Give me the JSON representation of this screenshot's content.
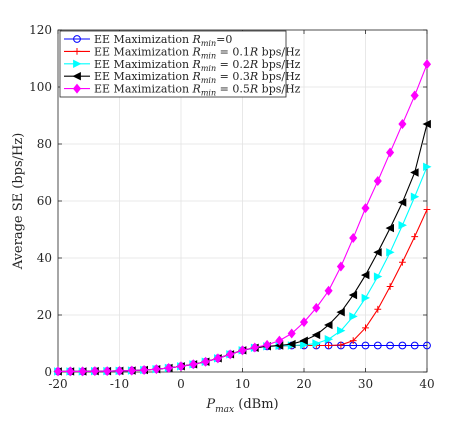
{
  "chart_data": {
    "type": "line",
    "title": "",
    "xlabel": {
      "symbol": "P",
      "subscript": "max",
      "unit": " (dBm)"
    },
    "ylabel": "Average SE (bps/Hz)",
    "xlim": [
      -20,
      40
    ],
    "ylim": [
      0,
      120
    ],
    "xticks": [
      -20,
      -10,
      0,
      10,
      20,
      30,
      40
    ],
    "yticks": [
      0,
      20,
      40,
      60,
      80,
      100,
      120
    ],
    "grid": true,
    "legend_position": "top-left",
    "x": [
      -20,
      -18,
      -16,
      -14,
      -12,
      -10,
      -8,
      -6,
      -4,
      -2,
      0,
      2,
      4,
      6,
      8,
      10,
      12,
      14,
      16,
      18,
      20,
      22,
      24,
      26,
      28,
      30,
      32,
      34,
      36,
      38,
      40
    ],
    "series": [
      {
        "name": {
          "prefix": "EE Maximization ",
          "symbol": "R",
          "subscript": "min",
          "suffix": "=0"
        },
        "color": "#0000ff",
        "marker": "circle",
        "values": [
          0.2,
          0.2,
          0.2,
          0.3,
          0.3,
          0.4,
          0.5,
          0.7,
          1.0,
          1.4,
          2.0,
          2.7,
          3.6,
          4.8,
          6.2,
          7.6,
          8.5,
          9.0,
          9.2,
          9.3,
          9.3,
          9.3,
          9.3,
          9.3,
          9.3,
          9.3,
          9.3,
          9.3,
          9.3,
          9.3,
          9.3
        ]
      },
      {
        "name": {
          "prefix": "EE Maximization ",
          "symbol": "R",
          "subscript": "min",
          "suffix": " = 0.1",
          "symbol2": "R",
          "suffix2": " bps/Hz"
        },
        "color": "#ff0000",
        "marker": "plus",
        "values": [
          0.2,
          0.2,
          0.2,
          0.3,
          0.3,
          0.4,
          0.5,
          0.7,
          1.0,
          1.4,
          2.0,
          2.7,
          3.6,
          4.8,
          6.2,
          7.6,
          8.5,
          9.0,
          9.2,
          9.3,
          9.3,
          9.3,
          9.3,
          9.5,
          11.0,
          15.5,
          22.0,
          30.0,
          38.5,
          47.5,
          57.0
        ]
      },
      {
        "name": {
          "prefix": "EE Maximization ",
          "symbol": "R",
          "subscript": "min",
          "suffix": " = 0.2",
          "symbol2": "R",
          "suffix2": " bps/Hz"
        },
        "color": "#00ffff",
        "marker": "triangle-right",
        "values": [
          0.2,
          0.2,
          0.2,
          0.3,
          0.3,
          0.4,
          0.5,
          0.7,
          1.0,
          1.4,
          2.0,
          2.7,
          3.6,
          4.8,
          6.2,
          7.6,
          8.5,
          9.0,
          9.2,
          9.3,
          9.5,
          10.0,
          11.5,
          14.5,
          19.5,
          26.0,
          33.5,
          42.0,
          51.5,
          61.5,
          72.0
        ]
      },
      {
        "name": {
          "prefix": "EE Maximization ",
          "symbol": "R",
          "subscript": "min",
          "suffix": " = 0.3",
          "symbol2": "R",
          "suffix2": " bps/Hz"
        },
        "color": "#000000",
        "marker": "triangle-left",
        "values": [
          0.2,
          0.2,
          0.2,
          0.3,
          0.3,
          0.4,
          0.5,
          0.7,
          1.0,
          1.4,
          2.0,
          2.7,
          3.6,
          4.8,
          6.2,
          7.6,
          8.5,
          9.0,
          9.3,
          9.8,
          11.0,
          13.0,
          16.5,
          21.0,
          27.0,
          34.0,
          42.0,
          50.5,
          59.5,
          70.0,
          87.0
        ]
      },
      {
        "name": {
          "prefix": "EE Maximization ",
          "symbol": "R",
          "subscript": "min",
          "suffix": " = 0.5",
          "symbol2": "R",
          "suffix2": " bps/Hz"
        },
        "color": "#ff00ff",
        "marker": "diamond",
        "values": [
          0.2,
          0.2,
          0.2,
          0.3,
          0.3,
          0.4,
          0.5,
          0.7,
          1.0,
          1.4,
          2.0,
          2.7,
          3.6,
          4.8,
          6.2,
          7.6,
          8.6,
          9.5,
          11.0,
          13.5,
          17.5,
          22.5,
          28.5,
          37.0,
          47.0,
          57.5,
          67.0,
          77.0,
          87.0,
          97.0,
          108.0
        ]
      }
    ]
  }
}
